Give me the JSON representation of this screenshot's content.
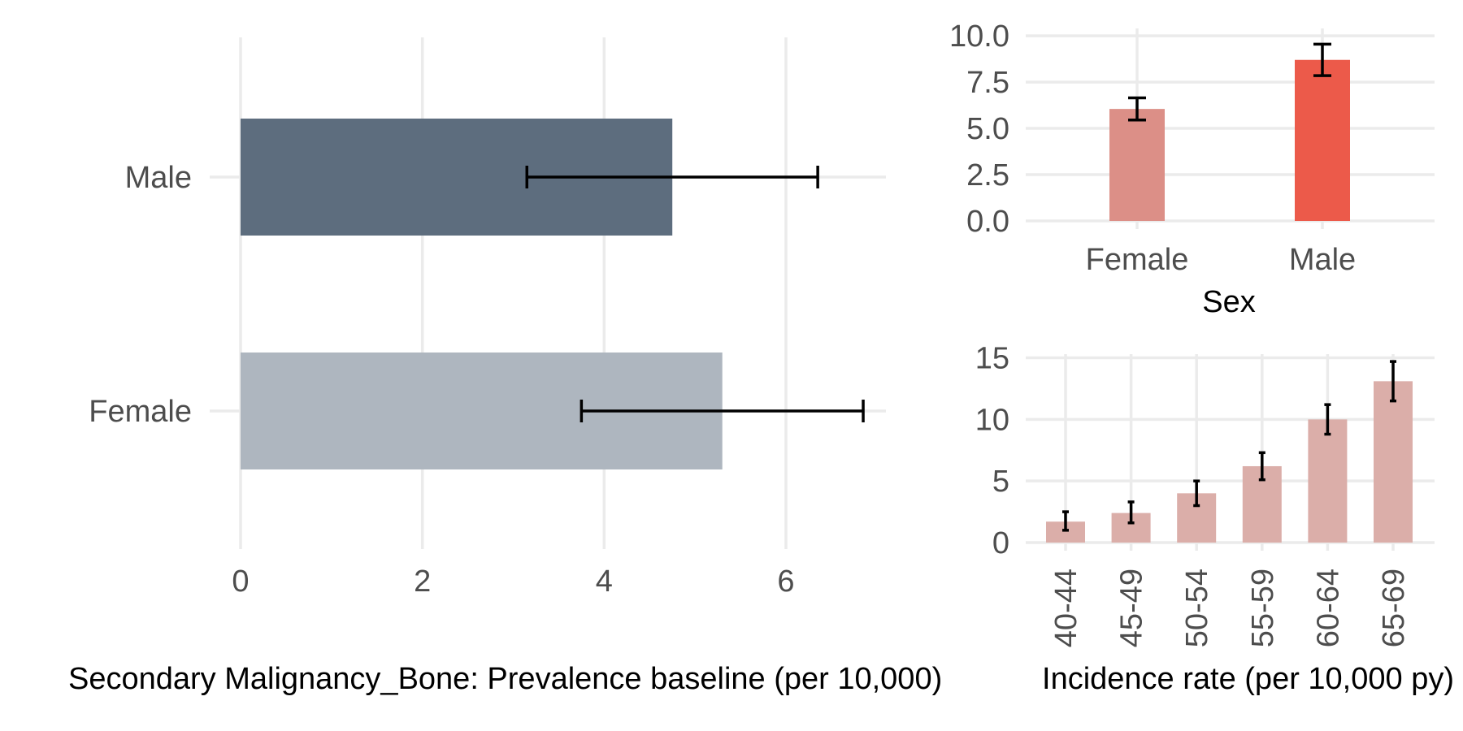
{
  "colors": {
    "left_male": "#5d6d7e",
    "left_female": "#aeb6bf",
    "sex_female": "#dc8f87",
    "sex_male": "#ec5a4a",
    "age_bars": "#dbaea9",
    "grid": "#ebebeb",
    "error_bars": "#000000"
  },
  "chart_data": [
    {
      "type": "bar",
      "orientation": "horizontal",
      "categories": [
        "Male",
        "Female"
      ],
      "values": [
        4.75,
        5.3
      ],
      "error_low": [
        3.15,
        3.75
      ],
      "error_high": [
        6.35,
        6.85
      ],
      "xlabel": "Secondary Malignancy_Bone: Prevalence baseline (per 10,000)",
      "ylabel": "",
      "xlim": [
        0,
        7.1
      ],
      "xticks": [
        "0",
        "2",
        "4",
        "6"
      ],
      "grid": true
    },
    {
      "type": "bar",
      "categories": [
        "Female",
        "Male"
      ],
      "values": [
        6.05,
        8.7
      ],
      "error_low": [
        5.45,
        7.85
      ],
      "error_high": [
        6.65,
        9.55
      ],
      "xlabel": "Sex",
      "ylabel": "",
      "ylim": [
        0,
        10.4
      ],
      "yticks": [
        "0.0",
        "2.5",
        "5.0",
        "7.5",
        "10.0"
      ],
      "grid": true
    },
    {
      "type": "bar",
      "categories": [
        "40-44",
        "45-49",
        "50-54",
        "55-59",
        "60-64",
        "65-69"
      ],
      "values": [
        1.7,
        2.4,
        4.0,
        6.2,
        10.0,
        13.1
      ],
      "error_low": [
        1.0,
        1.6,
        3.0,
        5.1,
        8.8,
        11.5
      ],
      "error_high": [
        2.5,
        3.3,
        5.0,
        7.3,
        11.2,
        14.7
      ],
      "xlabel": "Incidence rate (per 10,000 py)",
      "ylabel": "",
      "ylim": [
        0,
        15.3
      ],
      "yticks": [
        "0",
        "5",
        "10",
        "15"
      ],
      "grid": true
    }
  ]
}
